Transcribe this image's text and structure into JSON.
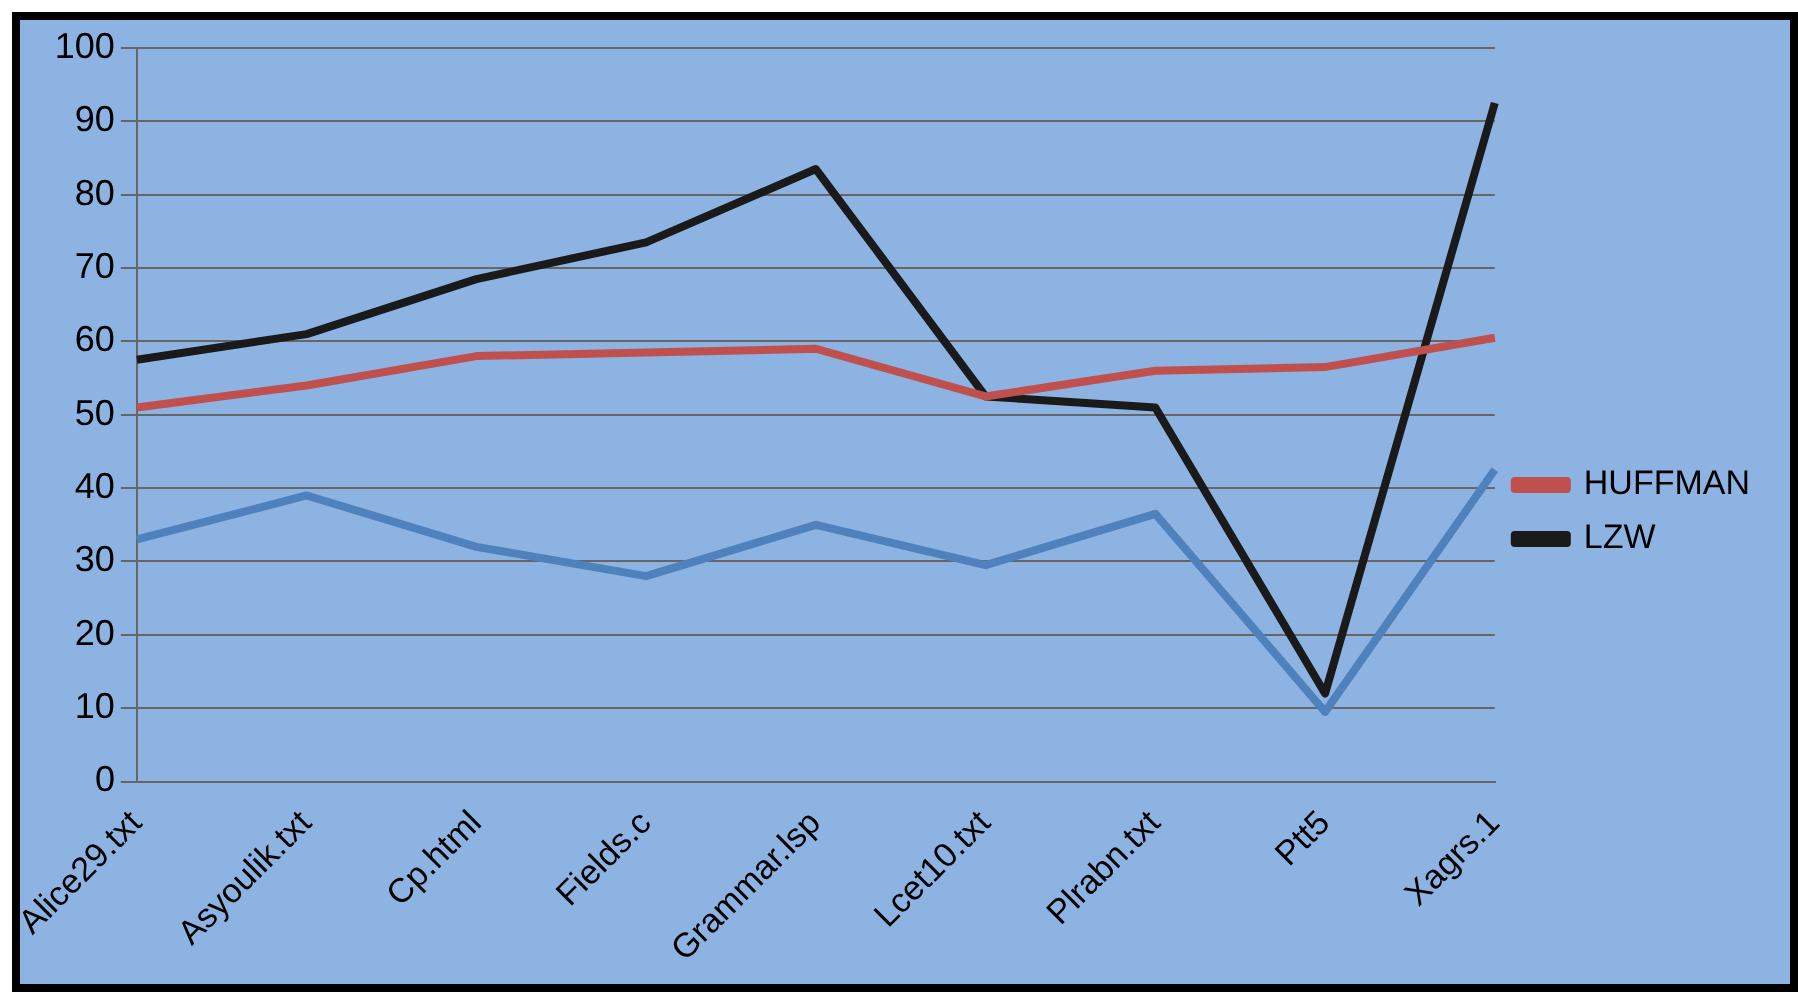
{
  "chart_data": {
    "type": "line",
    "categories": [
      "Alice29.txt",
      "Asyoulik.txt",
      "Cp.html",
      "Fields.c",
      "Grammar.lsp",
      "Lcet10.txt",
      "Plrabn.txt",
      "Ptt5",
      "Xagrs.1"
    ],
    "series": [
      {
        "color": "#4f81bd",
        "values": [
          33,
          39,
          32,
          28,
          35,
          29.5,
          36.5,
          9.5,
          42.5
        ]
      },
      {
        "name": "HUFFMAN",
        "color": "#c0504d",
        "values": [
          51,
          54,
          58,
          58.5,
          59,
          52.5,
          56,
          56.5,
          60.5
        ]
      },
      {
        "name": "LZW",
        "color": "#1a1a1a",
        "values": [
          57.5,
          61,
          68.5,
          73.5,
          83.5,
          52.5,
          51,
          12,
          92.5
        ]
      }
    ],
    "ylim": [
      0,
      100
    ],
    "yticks": [
      0,
      10,
      20,
      30,
      40,
      50,
      60,
      70,
      80,
      90,
      100
    ],
    "grid": "y",
    "legend": "right",
    "marker": "none",
    "line_style": "solid"
  }
}
